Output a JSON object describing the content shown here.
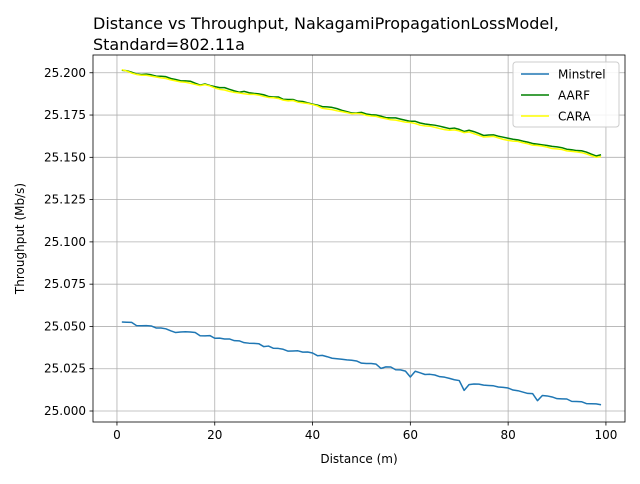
{
  "chart_data": {
    "type": "line",
    "title": "Distance vs Throughput, NakagamiPropagationLossModel,\nStandard=802.11a",
    "xlabel": "Distance (m)",
    "ylabel": "Throughput (Mb/s)",
    "xlim": [
      -4.9,
      103.9
    ],
    "ylim": [
      24.9935,
      25.2105
    ],
    "xticks": [
      0,
      20,
      40,
      60,
      80,
      100
    ],
    "xtick_labels": [
      "0",
      "20",
      "40",
      "60",
      "80",
      "100"
    ],
    "yticks": [
      25.0,
      25.025,
      25.05,
      25.075,
      25.1,
      25.125,
      25.15,
      25.175,
      25.2
    ],
    "ytick_labels": [
      "25.000",
      "25.025",
      "25.050",
      "25.075",
      "25.100",
      "25.125",
      "25.150",
      "25.175",
      "25.200"
    ],
    "grid": true,
    "legend": {
      "position": "top-right",
      "entries": [
        "Minstrel",
        "AARF",
        "CARA"
      ]
    },
    "colors": {
      "Minstrel": "#1f77b4",
      "AARF": "#008000",
      "CARA": "#ffff00"
    },
    "x_start": 1,
    "x_step": 1,
    "series": [
      {
        "name": "Minstrel",
        "values": [
          25.0526,
          25.0525,
          25.0524,
          25.0505,
          25.0504,
          25.0505,
          25.0503,
          25.0491,
          25.0491,
          25.0486,
          25.0474,
          25.0464,
          25.0467,
          25.0469,
          25.0467,
          25.0464,
          25.0445,
          25.0444,
          25.0446,
          25.043,
          25.0431,
          25.0426,
          25.0426,
          25.0416,
          25.0415,
          25.0404,
          25.0401,
          25.04,
          25.0398,
          25.0381,
          25.0384,
          25.0371,
          25.037,
          25.0365,
          25.0354,
          25.0355,
          25.0356,
          25.0348,
          25.0349,
          25.0343,
          25.0327,
          25.0329,
          25.0321,
          25.0312,
          25.0309,
          25.0306,
          25.0302,
          25.03,
          25.0296,
          25.0283,
          25.0281,
          25.0281,
          25.0277,
          25.0252,
          25.0261,
          25.026,
          25.0244,
          25.0243,
          25.0236,
          25.0201,
          25.0235,
          25.0226,
          25.0216,
          25.0217,
          25.0213,
          25.0203,
          25.02,
          25.0193,
          25.0185,
          25.018,
          25.0122,
          25.0156,
          25.016,
          25.0159,
          25.0153,
          25.0151,
          25.0149,
          25.0142,
          25.014,
          25.0136,
          25.0124,
          25.012,
          25.0112,
          25.0104,
          25.0103,
          25.0061,
          25.0092,
          25.0089,
          25.0083,
          25.0073,
          25.0072,
          25.0071,
          25.0057,
          25.0056,
          25.0055,
          25.0044,
          25.0043,
          25.0042,
          25.0037
        ]
      },
      {
        "name": "AARF",
        "values": [
          25.2015,
          25.2012,
          25.2003,
          25.1993,
          25.199,
          25.1992,
          25.1988,
          25.198,
          25.1979,
          25.1977,
          25.1966,
          25.196,
          25.1953,
          25.1952,
          25.195,
          25.1938,
          25.1927,
          25.1934,
          25.1925,
          25.1918,
          25.1912,
          25.1912,
          25.1902,
          25.1893,
          25.1885,
          25.189,
          25.1882,
          25.1878,
          25.1875,
          25.187,
          25.186,
          25.1857,
          25.1857,
          25.1843,
          25.1842,
          25.1842,
          25.1832,
          25.183,
          25.1822,
          25.1815,
          25.1809,
          25.18,
          25.1798,
          25.1795,
          25.1788,
          25.1778,
          25.177,
          25.1762,
          25.1763,
          25.1766,
          25.1756,
          25.1752,
          25.175,
          25.1743,
          25.1735,
          25.1733,
          25.1733,
          25.1726,
          25.1719,
          25.1713,
          25.1713,
          25.1703,
          25.1697,
          25.1693,
          25.169,
          25.1684,
          25.1677,
          25.167,
          25.1673,
          25.1665,
          25.1653,
          25.166,
          25.1652,
          25.1641,
          25.1629,
          25.1632,
          25.1633,
          25.1625,
          25.1619,
          25.1613,
          25.1607,
          25.1603,
          25.1596,
          25.159,
          25.1582,
          25.1578,
          25.1574,
          25.157,
          25.1565,
          25.1562,
          25.1557,
          25.1548,
          25.1545,
          25.154,
          25.1539,
          25.1531,
          25.1519,
          25.1508,
          25.1515
        ]
      },
      {
        "name": "CARA",
        "values": [
          25.2018,
          25.201,
          25.1998,
          25.199,
          25.1985,
          25.1985,
          25.198,
          25.1975,
          25.197,
          25.1966,
          25.1958,
          25.1952,
          25.1946,
          25.1944,
          25.1938,
          25.1931,
          25.1924,
          25.193,
          25.1922,
          25.191,
          25.1902,
          25.1898,
          25.189,
          25.1884,
          25.188,
          25.1876,
          25.1872,
          25.1872,
          25.1868,
          25.186,
          25.1854,
          25.1852,
          25.1848,
          25.1838,
          25.1834,
          25.1836,
          25.1826,
          25.1822,
          25.1818,
          25.1812,
          25.1804,
          25.179,
          25.1786,
          25.1782,
          25.1775,
          25.177,
          25.1764,
          25.1758,
          25.176,
          25.1758,
          25.1748,
          25.1744,
          25.1742,
          25.1734,
          25.1728,
          25.1722,
          25.172,
          25.1714,
          25.1708,
          25.1706,
          25.17,
          25.169,
          25.1686,
          25.1684,
          25.1678,
          25.167,
          25.1664,
          25.166,
          25.1662,
          25.1656,
          25.1646,
          25.165,
          25.164,
          25.163,
          25.162,
          25.1622,
          25.1624,
          25.1615,
          25.1606,
          25.16,
          25.1596,
          25.1594,
          25.1586,
          25.158,
          25.1572,
          25.157,
          25.1566,
          25.156,
          25.1552,
          25.155,
          25.1546,
          25.1538,
          25.1535,
          25.1532,
          25.1528,
          25.152,
          25.151,
          25.15,
          25.1505
        ]
      }
    ]
  }
}
